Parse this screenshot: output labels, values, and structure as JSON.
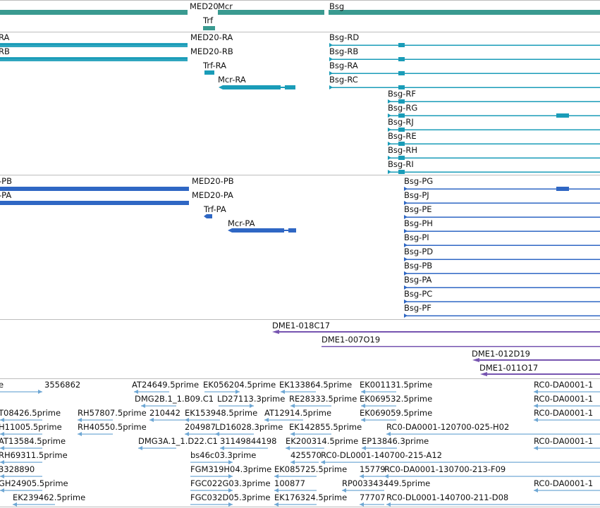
{
  "colors": {
    "gene": "#3a9a90",
    "transcript": "#1a9cb8",
    "protein": "#2f67c4",
    "clone": "#7654b0",
    "est": "#6ea7d4",
    "divider": "#bdbdbd"
  },
  "gene_track": {
    "labels": [
      "MED20",
      "Mcr",
      "Trf",
      "Bsg"
    ]
  },
  "transcript_track": {
    "labels": [
      "RA",
      "RB",
      "MED20-RA",
      "MED20-RB",
      "Trf-RA",
      "Mcr-RA",
      "Bsg-RD",
      "Bsg-RB",
      "Bsg-RA",
      "Bsg-RC",
      "Bsg-RF",
      "Bsg-RG",
      "Bsg-RJ",
      "Bsg-RE",
      "Bsg-RH",
      "Bsg-RI"
    ]
  },
  "protein_track": {
    "labels": [
      "-PB",
      "-PA",
      "MED20-PB",
      "MED20-PA",
      "Trf-PA",
      "Mcr-PA",
      "Bsg-PG",
      "Bsg-PJ",
      "Bsg-PE",
      "Bsg-PH",
      "Bsg-PI",
      "Bsg-PD",
      "Bsg-PB",
      "Bsg-PA",
      "Bsg-PC",
      "Bsg-PF"
    ]
  },
  "clone_track": {
    "labels": [
      "DME1-018C17",
      "DME1-007O19",
      "DME1-012D19",
      "DME1-011O17"
    ]
  },
  "est_track": {
    "labels": [
      "e",
      "3556862",
      "AT24649.5prime",
      "EK056204.5prime",
      "EK133864.5prime",
      "EK001131.5prime",
      "RC0-DA0001-1",
      "DMG2B.1_1.B09.C1",
      "LD27113.3prime",
      "RE28333.5prime",
      "EK069532.5prime",
      "RC0-DA0001-1",
      "T08426.5prime",
      "RH57807.5prime",
      "210442",
      "EK153948.5prime",
      "AT12914.5prime",
      "EK069059.5prime",
      "RC0-DA0001-1",
      "H11005.5prime",
      "RH40550.5prime",
      "204987",
      "LD16028.3prime",
      "EK142855.5prime",
      "RC0-DA0001-120700-025-H02",
      "AT13584.5prime",
      "DMG3A.1_1.D22.C1",
      "31149844198",
      "EK200314.5prime",
      "EP13846.3prime",
      "RC0-DA0001-1",
      "RH69311.5prime",
      "bs46c03.3prime",
      "425570",
      "RC0-DL0001-140700-215-A12",
      "3328890",
      "FGM319H04.3prime",
      "EK085725.5prime",
      "15779",
      "RC0-DA0001-130700-213-F09",
      "GH24905.5prime",
      "FGC022G03.3prime",
      "100877",
      "RP003343449.5prime",
      "RC0-DA0001-1",
      "EK239462.5prime",
      "FGC032D05.3prime",
      "EK176324.5prime",
      "77707",
      "RC0-DL0001-140700-211-D08"
    ]
  }
}
